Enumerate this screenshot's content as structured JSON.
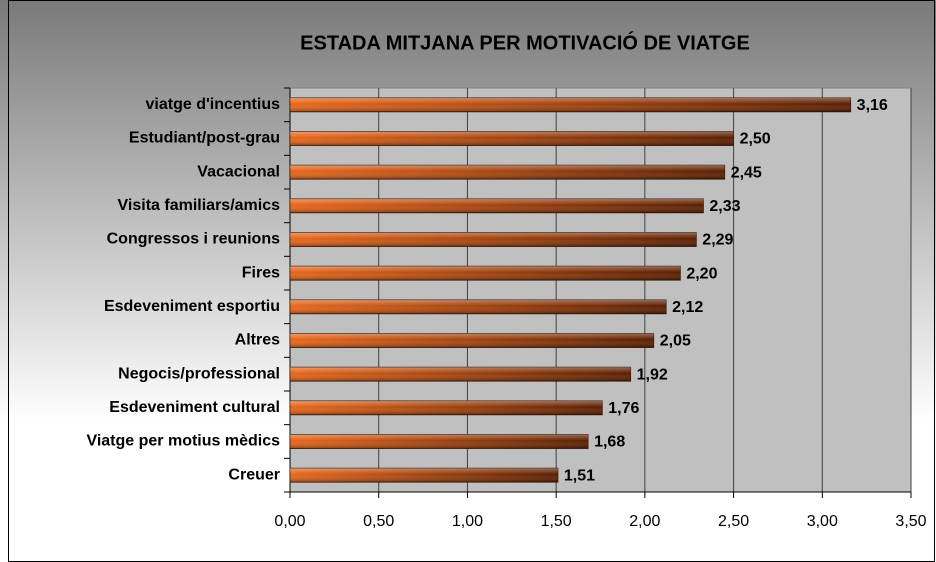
{
  "chart_data": {
    "type": "bar",
    "orientation": "horizontal",
    "title": "ESTADA MITJANA PER MOTIVACIÓ DE VIATGE",
    "categories": [
      "viatge d'incentius",
      "Estudiant/post-grau",
      "Vacacional",
      "Visita familiars/amics",
      "Congressos i reunions",
      "Fires",
      "Esdeveniment esportiu",
      "Altres",
      "Negocis/professional",
      "Esdeveniment cultural",
      "Viatge per motius mèdics",
      "Creuer"
    ],
    "values": [
      3.16,
      2.5,
      2.45,
      2.33,
      2.29,
      2.2,
      2.12,
      2.05,
      1.92,
      1.76,
      1.68,
      1.51
    ],
    "value_labels": [
      "3,16",
      "2,50",
      "2,45",
      "2,33",
      "2,29",
      "2,20",
      "2,12",
      "2,05",
      "1,92",
      "1,76",
      "1,68",
      "1,51"
    ],
    "color": "#e8661a",
    "xlim": [
      0,
      3.5
    ],
    "xticks": [
      {
        "value": 0,
        "label": "0,00"
      },
      {
        "value": 0.5,
        "label": "0,50"
      },
      {
        "value": 1,
        "label": "1,00"
      },
      {
        "value": 1.5,
        "label": "1,50"
      },
      {
        "value": 2,
        "label": "2,00"
      },
      {
        "value": 2.5,
        "label": "2,50"
      },
      {
        "value": 3,
        "label": "3,00"
      },
      {
        "value": 3.5,
        "label": "3,50"
      }
    ],
    "grid": true
  }
}
